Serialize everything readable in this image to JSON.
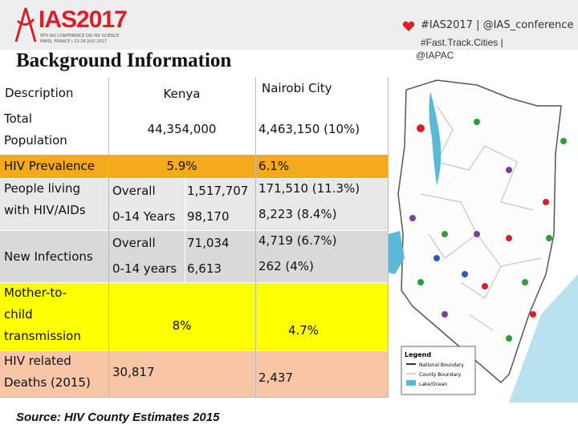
{
  "header": {
    "logo": "IAS2017",
    "logo_line1": "9TH IAS CONFERENCE ON HIV SCIENCE",
    "logo_line2": "PARIS, FRANCE | 23-26 JULY 2017",
    "hashtag": "#IAS2017 | @IAS_conference",
    "hashtag2": "#Fast.Track.Cities |",
    "hashtag3": "@IAPAC"
  },
  "title": "Background Information",
  "table": {
    "header": [
      "Description",
      "Kenya",
      "Nairobi City"
    ],
    "rows": [
      {
        "label": "Total Population",
        "kenya": "44,354,000",
        "nairobi": "4,463,150 (10%)"
      },
      {
        "label": "HIV Prevalence",
        "kenya": "5.9%",
        "nairobi": "6.1%"
      },
      {
        "label": "People living with HIV/AIDs",
        "subrows": [
          {
            "label": "Overall",
            "kenya": "1,517,707",
            "nairobi": "171,510 (11.3%)"
          },
          {
            "label": "0-14 Years",
            "kenya": "98,170",
            "nairobi": "8,223 (8.4%)"
          }
        ]
      },
      {
        "label": "New Infections",
        "subrows": [
          {
            "label": "Overall",
            "kenya": "71,034",
            "nairobi": "4,719 (6.7%)"
          },
          {
            "label": "0-14 years",
            "kenya": "6,613",
            "nairobi": "262 (4%)"
          }
        ]
      },
      {
        "label": "Mother-to-child transmission",
        "kenya": "8%",
        "nairobi": "4.7%"
      },
      {
        "label": "HIV related Deaths (2015)",
        "kenya": "30,817",
        "nairobi": "2,437"
      }
    ]
  },
  "source": "Source: HIV County Estimates 2015",
  "map_legend": {
    "title": "Legend",
    "items": [
      "National Boundary",
      "County Boundary",
      "Lake/Ocean"
    ]
  }
}
